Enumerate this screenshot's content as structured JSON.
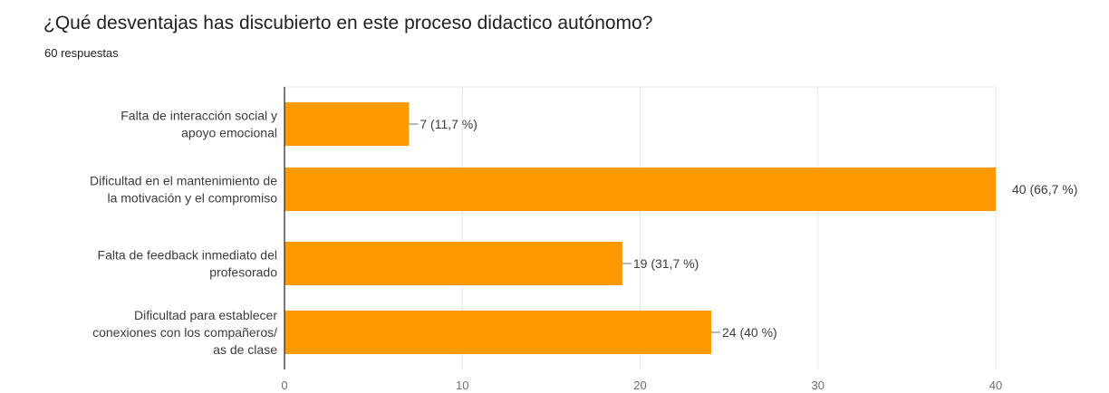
{
  "header": {
    "title": "¿Qué desventajas has discubierto en este proceso didactico autónomo?",
    "response_count": "60 respuestas"
  },
  "chart_data": {
    "type": "bar",
    "orientation": "horizontal",
    "title": "¿Qué desventajas has discubierto en este proceso didactico autónomo?",
    "subtitle": "60 respuestas",
    "categories": [
      [
        "Falta de interacción social y",
        "apoyo emocional"
      ],
      [
        "Dificultad en el mantenimiento de",
        "la motivación y el compromiso"
      ],
      [
        "Falta de feedback inmediato del",
        "profesorado"
      ],
      [
        "Dificultad para establecer",
        "conexiones con los compañeros/",
        "as de clase"
      ]
    ],
    "values": [
      7,
      40,
      19,
      24
    ],
    "data_labels": [
      "7 (11,7 %)",
      "40 (66,7 %)",
      "19 (31,7 %)",
      "24 (40 %)"
    ],
    "xlim": [
      0,
      40
    ],
    "xticks": [
      0,
      10,
      20,
      30,
      40
    ],
    "bar_color": "#ff9900",
    "grid": true,
    "legend": "none"
  }
}
